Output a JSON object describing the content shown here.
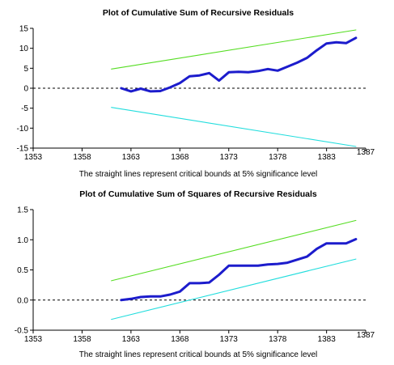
{
  "chart_data": [
    {
      "type": "line",
      "title": "Plot of Cumulative Sum of Recursive Residuals",
      "note": "The straight lines represent critical bounds at 5% significance level",
      "xlabel": "",
      "ylabel": "",
      "xlim": [
        1353,
        1387
      ],
      "ylim": [
        -15,
        15
      ],
      "x_ticks": [
        1353,
        1358,
        1363,
        1368,
        1373,
        1378,
        1383,
        1387
      ],
      "y_ticks": [
        15,
        10,
        5,
        0,
        -5,
        -10,
        -15
      ],
      "y_tick_labels": [
        "15",
        "10",
        "5",
        "0",
        "-5",
        "-10",
        "-15"
      ],
      "zero_line": 0,
      "grid": false,
      "series": [
        {
          "color": "#55dd22",
          "x": [
            1361,
            1386
          ],
          "values": [
            4.8,
            14.6
          ]
        },
        {
          "color": "#22dddd",
          "x": [
            1361,
            1386
          ],
          "values": [
            -4.8,
            -14.6
          ]
        },
        {
          "color": "#1c1ccc",
          "x": [
            1362,
            1363,
            1364,
            1365,
            1366,
            1367,
            1368,
            1369,
            1370,
            1371,
            1372,
            1373,
            1374,
            1375,
            1376,
            1377,
            1378,
            1379,
            1380,
            1381,
            1382,
            1383,
            1384,
            1385,
            1386
          ],
          "values": [
            0.0,
            -0.8,
            -0.1,
            -0.8,
            -0.7,
            0.2,
            1.3,
            3.0,
            3.2,
            3.8,
            1.9,
            4.0,
            4.1,
            4.0,
            4.3,
            4.8,
            4.4,
            5.4,
            6.4,
            7.6,
            9.5,
            11.2,
            11.5,
            11.3,
            12.6
          ]
        }
      ]
    },
    {
      "type": "line",
      "title": "Plot of Cumulative Sum of Squares of Recursive Residuals",
      "note": "The straight lines represent critical bounds at 5% significance level",
      "xlabel": "",
      "ylabel": "",
      "xlim": [
        1353,
        1387
      ],
      "ylim": [
        -0.5,
        1.5
      ],
      "x_ticks": [
        1353,
        1358,
        1363,
        1368,
        1373,
        1378,
        1383,
        1387
      ],
      "y_ticks": [
        1.5,
        1.0,
        0.5,
        0.0,
        -0.5
      ],
      "y_tick_labels": [
        "1.5",
        "1.0",
        "0.5",
        "0.0",
        "-0.5"
      ],
      "zero_line": 0,
      "grid": false,
      "series": [
        {
          "color": "#55dd22",
          "x": [
            1361,
            1386
          ],
          "values": [
            0.32,
            1.32
          ]
        },
        {
          "color": "#22dddd",
          "x": [
            1361,
            1386
          ],
          "values": [
            -0.32,
            0.68
          ]
        },
        {
          "color": "#1c1ccc",
          "x": [
            1362,
            1363,
            1364,
            1365,
            1366,
            1367,
            1368,
            1369,
            1370,
            1371,
            1372,
            1373,
            1374,
            1375,
            1376,
            1377,
            1378,
            1379,
            1380,
            1381,
            1382,
            1383,
            1384,
            1385,
            1386
          ],
          "values": [
            0.0,
            0.02,
            0.05,
            0.06,
            0.06,
            0.09,
            0.14,
            0.28,
            0.28,
            0.29,
            0.42,
            0.57,
            0.57,
            0.57,
            0.57,
            0.59,
            0.6,
            0.62,
            0.67,
            0.72,
            0.85,
            0.94,
            0.94,
            0.94,
            1.01
          ]
        }
      ]
    }
  ]
}
